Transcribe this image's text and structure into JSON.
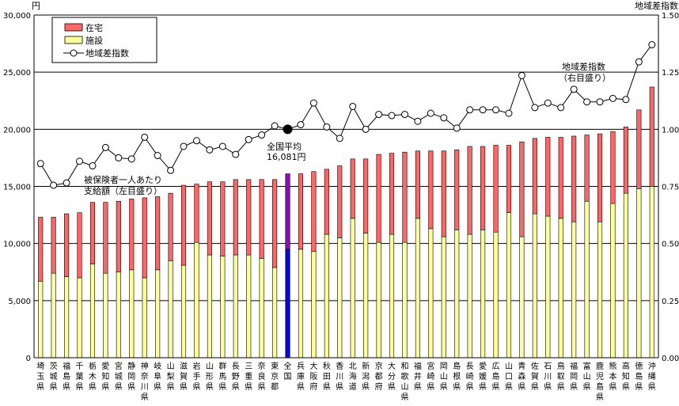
{
  "chart_data": {
    "type": "bar",
    "stacked": true,
    "y_unit_left": "円",
    "y_unit_right": "地域差指数",
    "ylim": [
      0,
      30000
    ],
    "y2lim": [
      0,
      1.5
    ],
    "yticks": [
      "0",
      "5,000",
      "10,000",
      "15,000",
      "20,000",
      "25,000",
      "30,000"
    ],
    "y2ticks": [
      "0.00",
      "0.25",
      "0.50",
      "0.75",
      "1.00",
      "1.25",
      "1.50"
    ],
    "grid": true,
    "legend_position": "top-left",
    "legend": [
      "在宅",
      "施設",
      "地域差指数"
    ],
    "categories": [
      [
        "埼",
        "玉",
        "県"
      ],
      [
        "茨",
        "城",
        "県"
      ],
      [
        "福",
        "島",
        "県"
      ],
      [
        "千",
        "葉",
        "県"
      ],
      [
        "栃",
        "木",
        "県"
      ],
      [
        "愛",
        "知",
        "県"
      ],
      [
        "宮",
        "城",
        "県"
      ],
      [
        "静",
        "岡",
        "県"
      ],
      [
        "神",
        "奈",
        "川",
        "県"
      ],
      [
        "岐",
        "阜",
        "県"
      ],
      [
        "山",
        "梨",
        "県"
      ],
      [
        "滋",
        "賀",
        "県"
      ],
      [
        "岩",
        "手",
        "県"
      ],
      [
        "山",
        "形",
        "県"
      ],
      [
        "群",
        "馬",
        "県"
      ],
      [
        "長",
        "野",
        "県"
      ],
      [
        "三",
        "重",
        "県"
      ],
      [
        "奈",
        "良",
        "県"
      ],
      [
        "東",
        "京",
        "都"
      ],
      [
        "全",
        "国"
      ],
      [
        "兵",
        "庫",
        "県"
      ],
      [
        "大",
        "阪",
        "府"
      ],
      [
        "秋",
        "田",
        "県"
      ],
      [
        "香",
        "川",
        "県"
      ],
      [
        "北",
        "海",
        "道"
      ],
      [
        "新",
        "潟",
        "県"
      ],
      [
        "京",
        "都",
        "府"
      ],
      [
        "大",
        "分",
        "県"
      ],
      [
        "和",
        "歌",
        "山",
        "県"
      ],
      [
        "福",
        "井",
        "県"
      ],
      [
        "宮",
        "崎",
        "県"
      ],
      [
        "岡",
        "山",
        "県"
      ],
      [
        "島",
        "根",
        "県"
      ],
      [
        "長",
        "崎",
        "県"
      ],
      [
        "愛",
        "媛",
        "県"
      ],
      [
        "広",
        "島",
        "県"
      ],
      [
        "山",
        "口",
        "県"
      ],
      [
        "青",
        "森",
        "県"
      ],
      [
        "佐",
        "賀",
        "県"
      ],
      [
        "石",
        "川",
        "県"
      ],
      [
        "鳥",
        "取",
        "県"
      ],
      [
        "福",
        "岡",
        "県"
      ],
      [
        "富",
        "山",
        "県"
      ],
      [
        "鹿",
        "児",
        "島",
        "県"
      ],
      [
        "熊",
        "本",
        "県"
      ],
      [
        "高",
        "知",
        "県"
      ],
      [
        "徳",
        "島",
        "県"
      ],
      [
        "沖",
        "縄",
        "県"
      ]
    ],
    "national_index": 19,
    "series": [
      {
        "name": "施設",
        "color": "#ffff99",
        "values": [
          6700,
          7400,
          7100,
          7000,
          8200,
          7400,
          7500,
          7700,
          7000,
          7700,
          8500,
          8100,
          10100,
          9000,
          8900,
          9000,
          9000,
          8700,
          7900,
          9500,
          9500,
          9300,
          10800,
          10500,
          12200,
          10900,
          10100,
          10800,
          10100,
          12200,
          11300,
          10600,
          11200,
          10800,
          11200,
          11000,
          12700,
          10600,
          12600,
          12400,
          12200,
          11900,
          13700,
          11900,
          13500,
          14400,
          14800,
          15000
        ]
      },
      {
        "name": "在宅",
        "color": "#ff6666",
        "values": [
          5600,
          4900,
          5500,
          5700,
          5400,
          6200,
          6200,
          6200,
          7000,
          6400,
          5900,
          7000,
          5100,
          6400,
          6500,
          6600,
          6600,
          6900,
          7700,
          6600,
          6600,
          7000,
          5700,
          6300,
          5200,
          6500,
          7700,
          7100,
          7900,
          5900,
          6800,
          7500,
          7000,
          7700,
          7300,
          7600,
          5900,
          8300,
          6600,
          6900,
          7100,
          7500,
          5800,
          7700,
          6300,
          5800,
          6900,
          8700
        ]
      },
      {
        "name": "地域差指数",
        "color": "#000000",
        "values": [
          0.85,
          0.755,
          0.765,
          0.86,
          0.84,
          0.92,
          0.875,
          0.87,
          0.965,
          0.885,
          0.82,
          0.925,
          0.95,
          0.91,
          0.925,
          0.89,
          0.955,
          0.975,
          1.015,
          1.0,
          1.02,
          1.115,
          1.01,
          0.96,
          1.1,
          1.0,
          1.065,
          1.06,
          1.065,
          1.035,
          1.07,
          1.05,
          1.005,
          1.085,
          1.085,
          1.085,
          1.07,
          1.235,
          1.095,
          1.115,
          1.095,
          1.175,
          1.12,
          1.12,
          1.135,
          1.13,
          1.295,
          1.37
        ]
      }
    ],
    "annotations": {
      "national_avg": [
        "全国平均",
        "16,081円"
      ],
      "left_series": [
        "被保険者一人あたり",
        "支給額（左目盛り）"
      ],
      "right_series": [
        "地域差指数",
        "（右目盛り）"
      ]
    }
  }
}
